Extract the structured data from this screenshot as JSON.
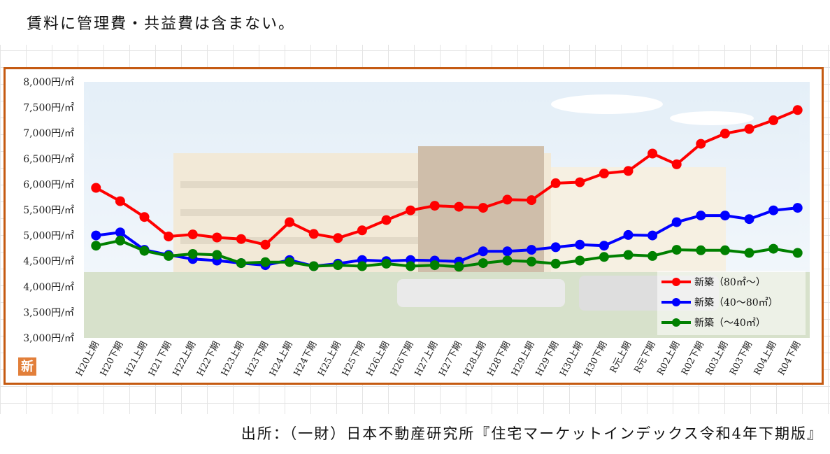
{
  "header": {
    "note": "賃料に管理費・共益費は含まない。"
  },
  "badge": {
    "label": "新"
  },
  "footer": {
    "source": "出所：（一財）日本不動産研究所『住宅マーケットインデックス令和4年下期版』"
  },
  "colors": {
    "frame": "#c55a11",
    "badge": "#e27f3a"
  },
  "chart_data": {
    "type": "line",
    "ylim": [
      3000,
      8000
    ],
    "yticks": [
      3000,
      3500,
      4000,
      4500,
      5000,
      5500,
      6000,
      6500,
      7000,
      7500,
      8000
    ],
    "ytick_labels": [
      "3,000円/㎡",
      "3,500円/㎡",
      "4,000円/㎡",
      "4,500円/㎡",
      "5,000円/㎡",
      "5,500円/㎡",
      "6,000円/㎡",
      "6,500円/㎡",
      "7,000円/㎡",
      "7,500円/㎡",
      "8,000円/㎡"
    ],
    "categories": [
      "H20上期",
      "H20下期",
      "H21上期",
      "H21下期",
      "H22上期",
      "H22下期",
      "H23上期",
      "H23下期",
      "H24上期",
      "H24下期",
      "H25上期",
      "H25下期",
      "H26上期",
      "H26下期",
      "H27上期",
      "H27下期",
      "H28上期",
      "H28下期",
      "H29上期",
      "H29下期",
      "H30上期",
      "H30下期",
      "R元上期",
      "R元下期",
      "R02上期",
      "R02下期",
      "R03上期",
      "R03下期",
      "R04上期",
      "R04下期"
    ],
    "legend_position": "bottom-right",
    "grid": false,
    "series": [
      {
        "name": "新築（80㎡～）",
        "color": "#ff0000",
        "values": [
          5930,
          5670,
          5360,
          4980,
          5020,
          4960,
          4930,
          4820,
          5260,
          5030,
          4950,
          5100,
          5300,
          5490,
          5580,
          5560,
          5540,
          5700,
          5690,
          6020,
          6040,
          6210,
          6260,
          6600,
          6390,
          6790,
          6990,
          7080,
          7250,
          7450
        ]
      },
      {
        "name": "新築（40～80㎡）",
        "color": "#0000ff",
        "values": [
          5000,
          5060,
          4720,
          4620,
          4540,
          4510,
          4460,
          4420,
          4520,
          4400,
          4450,
          4520,
          4500,
          4520,
          4510,
          4490,
          4690,
          4690,
          4720,
          4770,
          4820,
          4800,
          5010,
          5000,
          5260,
          5390,
          5390,
          5320,
          5490,
          5540
        ]
      },
      {
        "name": "新築（～40㎡）",
        "color": "#008000",
        "values": [
          4800,
          4900,
          4700,
          4600,
          4640,
          4620,
          4460,
          4480,
          4480,
          4400,
          4420,
          4400,
          4450,
          4400,
          4420,
          4390,
          4460,
          4510,
          4490,
          4450,
          4510,
          4580,
          4620,
          4600,
          4720,
          4710,
          4710,
          4660,
          4740,
          4660
        ]
      }
    ]
  }
}
